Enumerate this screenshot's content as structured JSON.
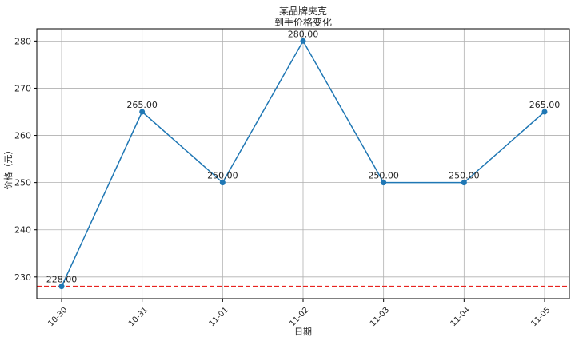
{
  "chart_data": {
    "type": "line",
    "title_line1": "某品牌夹克",
    "title_line2": "到手价格变化",
    "xlabel": "日期",
    "ylabel": "价格（元）",
    "categories": [
      "10-30",
      "10-31",
      "11-01",
      "11-02",
      "11-03",
      "11-04",
      "11-05"
    ],
    "series": [
      {
        "values": [
          228,
          265,
          250,
          280,
          250,
          250,
          265
        ]
      }
    ],
    "data_labels": [
      "228.00",
      "265.00",
      "250.00",
      "280.00",
      "250.00",
      "250.00",
      "265.00"
    ],
    "reference_line": {
      "value": 228,
      "style": "dashed"
    },
    "ylim": [
      225.4,
      282.6
    ],
    "yticks": [
      230,
      240,
      250,
      260,
      270,
      280
    ],
    "grid": true,
    "colors": {
      "line": "#1f77b4",
      "reference": "#e8231f",
      "grid": "#b0b0b0"
    }
  }
}
